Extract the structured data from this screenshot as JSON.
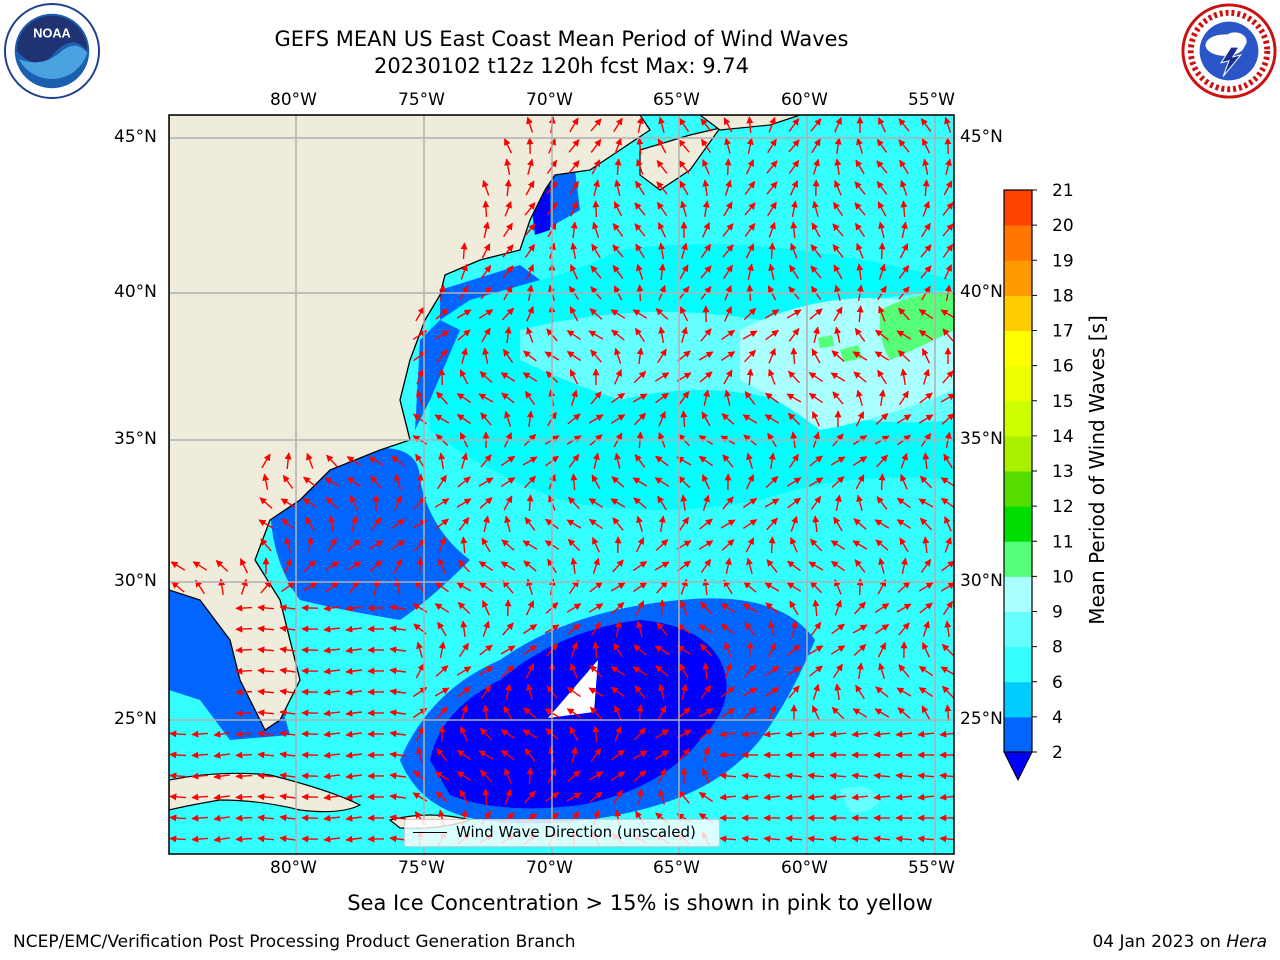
{
  "header": {
    "title_line1": "GEFS MEAN US East Coast Mean Period of Wind Waves",
    "title_line2": "20230102 t12z 120h fcst   Max: 9.74"
  },
  "logos": {
    "left": {
      "name": "NOAA",
      "icon": "noaa-logo"
    },
    "right": {
      "name": "National Weather Service",
      "icon": "nws-logo"
    }
  },
  "map": {
    "lon_ticks": [
      "80°W",
      "75°W",
      "70°W",
      "65°W",
      "60°W",
      "55°W"
    ],
    "lat_ticks": [
      "45°N",
      "40°N",
      "35°N",
      "30°N",
      "25°N"
    ],
    "legend_label": "Wind Wave Direction (unscaled)",
    "arrow_color": "#ff0000",
    "land_color": "#efecdc"
  },
  "colorbar": {
    "label": "Mean Period of Wind Waves [s]",
    "ticks": [
      "2",
      "4",
      "6",
      "8",
      "9",
      "10",
      "11",
      "12",
      "13",
      "14",
      "15",
      "16",
      "17",
      "18",
      "19",
      "20",
      "21"
    ],
    "colors": [
      "#0066ff",
      "#00ccff",
      "#33ffff",
      "#66ffff",
      "#aaffff",
      "#55ff77",
      "#00dd00",
      "#55dd00",
      "#aaee00",
      "#ccff00",
      "#eeff00",
      "#ffff00",
      "#ffcc00",
      "#ff9900",
      "#ff7700",
      "#ff4400",
      "#ff0000"
    ],
    "extend_low_color": "#0000ff"
  },
  "footer": {
    "caption": "Sea Ice Concentration > 15% is shown in pink to yellow",
    "credit": "NCEP/EMC/Verification Post Processing Product Generation Branch",
    "date": "04 Jan 2023 on",
    "host": "Hera"
  }
}
